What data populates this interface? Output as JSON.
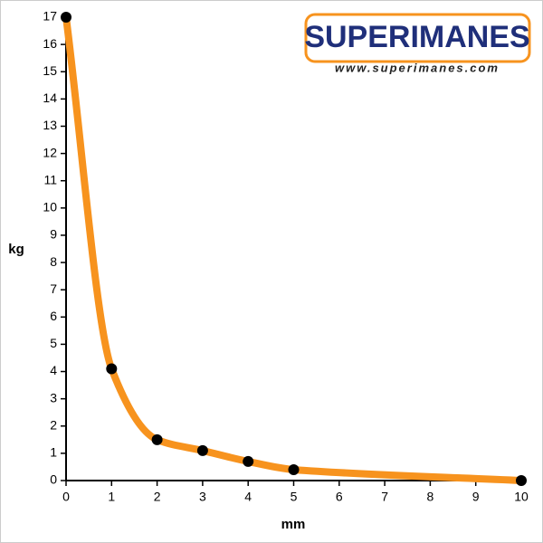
{
  "chart_data": {
    "type": "line",
    "logo": {
      "brand": "SUPERIMANES",
      "url": "www.superimanes.com"
    },
    "xlabel": "mm",
    "ylabel": "kg",
    "x": [
      0,
      1,
      2,
      3,
      4,
      5,
      10
    ],
    "values": [
      17,
      4.1,
      1.5,
      1.1,
      0.7,
      0.4,
      0
    ],
    "color": "#f7931e",
    "marker_color": "#000000",
    "xlim": [
      0,
      10
    ],
    "xticks": [
      0,
      1,
      2,
      3,
      4,
      5,
      6,
      7,
      8,
      9,
      10
    ],
    "ylim": [
      0,
      17
    ],
    "yticks": [
      0,
      1,
      2,
      3,
      4,
      5,
      6,
      7,
      8,
      9,
      10,
      11,
      12,
      13,
      14,
      15,
      16,
      17
    ],
    "grid": false
  }
}
